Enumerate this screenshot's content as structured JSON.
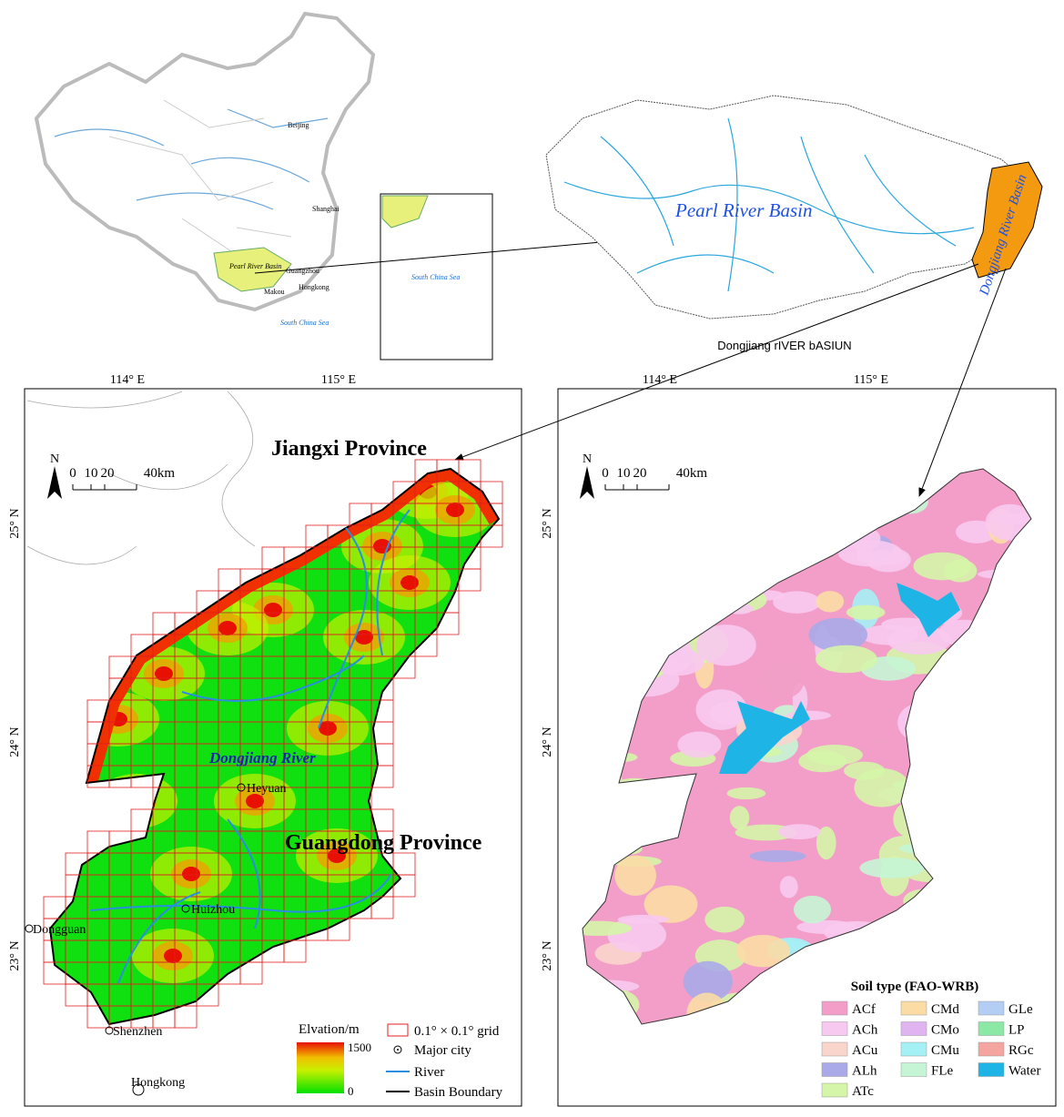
{
  "china_map": {
    "cities": [
      "Beijing",
      "Shanghai",
      "Guangzhou",
      "Hongkong",
      "Makou"
    ],
    "basin_label": "Pearl River Basin",
    "sea_label": "South China Sea",
    "inset_sea_label": "South China Sea"
  },
  "pearl_map": {
    "basin_label": "Pearl River Basin",
    "sub_basin_label": "Dongjiang River Basin",
    "caption": "Dongjiang rIVER bASIUN"
  },
  "coords": {
    "lon": [
      "114° E",
      "115° E"
    ],
    "lat": [
      "25° N",
      "24° N",
      "23° N"
    ]
  },
  "north": "N",
  "scale": [
    "0",
    "10",
    "20",
    "40km"
  ],
  "elevation_map": {
    "provinces": [
      "Jiangxi Province",
      "Guangdong Province"
    ],
    "river_label": "Dongjiang River",
    "cities": [
      "Heyuan",
      "Huizhou",
      "Dongguan",
      "Shenzhen",
      "Hongkong"
    ],
    "legend": {
      "title": "Elvation/m",
      "max": "1500",
      "min": "0",
      "items": [
        "0.1° × 0.1° grid",
        "Major city",
        "River",
        "Basin Boundary"
      ]
    }
  },
  "soil_map": {
    "legend_title": "Soil type (FAO-WRB)",
    "types": [
      {
        "name": "ACf",
        "color": "#f29ec8"
      },
      {
        "name": "ACh",
        "color": "#f8c9f0"
      },
      {
        "name": "ACu",
        "color": "#f9d5cc"
      },
      {
        "name": "ALh",
        "color": "#aaaae8"
      },
      {
        "name": "ATc",
        "color": "#d5f5a8"
      },
      {
        "name": "CMd",
        "color": "#fbdca5"
      },
      {
        "name": "CMo",
        "color": "#e0b4f0"
      },
      {
        "name": "CMu",
        "color": "#a5f0f5"
      },
      {
        "name": "FLe",
        "color": "#c5f5d5"
      },
      {
        "name": "GLe",
        "color": "#b4cdf5"
      },
      {
        "name": "LP",
        "color": "#8ce8a5"
      },
      {
        "name": "RGc",
        "color": "#f5a5a0"
      },
      {
        "name": "Water",
        "color": "#1eb4e6"
      }
    ]
  }
}
